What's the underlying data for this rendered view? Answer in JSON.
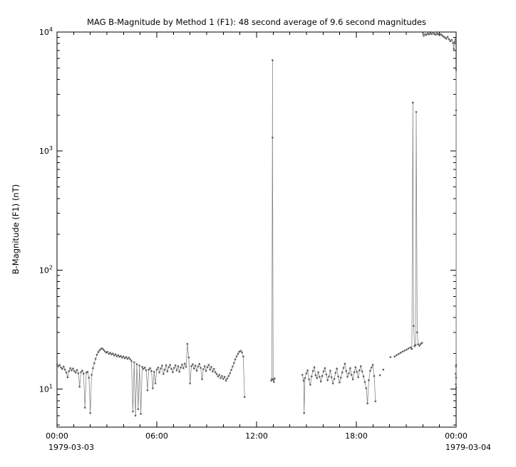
{
  "chart_data": {
    "type": "line",
    "title": "MAG  B-Magnitude by Method 1 (F1): 48 second average of 9.6 second magnitudes",
    "ylabel": "B-Magnitude (F1) (nT)",
    "x_date_left": "1979-03-03",
    "x_date_right": "1979-03-04",
    "xlim": [
      0,
      24
    ],
    "ylim": [
      4.8,
      10000
    ],
    "y_scale": "log",
    "x_ticks": [
      {
        "h": 0,
        "label": "00:00"
      },
      {
        "h": 6,
        "label": "06:00"
      },
      {
        "h": 12,
        "label": "12:00"
      },
      {
        "h": 18,
        "label": "18:00"
      },
      {
        "h": 24,
        "label": "00:00"
      }
    ],
    "x_minor_step_hours": 1,
    "y_ticks": [
      {
        "v": 10,
        "mantissa": "10",
        "exp": "1"
      },
      {
        "v": 100,
        "mantissa": "10",
        "exp": "2"
      },
      {
        "v": 1000,
        "mantissa": "10",
        "exp": "3"
      },
      {
        "v": 10000,
        "mantissa": "10",
        "exp": "4"
      }
    ],
    "colors": {
      "marker": "#5f5f5f",
      "line": "#808080",
      "axis": "#000000",
      "background": "#ffffff"
    },
    "series": [
      {
        "name": "B-Magnitude (F1) 48-second average",
        "units": "nT",
        "segments": [
          [
            [
              0.0,
              16.2
            ],
            [
              0.08,
              15.6
            ],
            [
              0.16,
              16.0
            ],
            [
              0.24,
              15.2
            ],
            [
              0.32,
              14.8
            ],
            [
              0.4,
              15.5
            ],
            [
              0.48,
              14.6
            ],
            [
              0.56,
              13.8
            ],
            [
              0.64,
              12.6
            ],
            [
              0.72,
              14.2
            ],
            [
              0.8,
              15.0
            ],
            [
              0.88,
              14.4
            ],
            [
              0.96,
              14.9
            ],
            [
              1.04,
              14.2
            ],
            [
              1.12,
              13.8
            ],
            [
              1.2,
              14.5
            ],
            [
              1.28,
              13.6
            ],
            [
              1.36,
              10.5
            ],
            [
              1.44,
              13.9
            ],
            [
              1.52,
              14.3
            ],
            [
              1.6,
              13.5
            ],
            [
              1.68,
              7.0
            ],
            [
              1.76,
              13.8
            ],
            [
              1.84,
              14.0
            ],
            [
              1.92,
              12.5
            ],
            [
              2.0,
              6.3
            ],
            [
              2.08,
              13.2
            ],
            [
              2.16,
              15.0
            ],
            [
              2.24,
              16.5
            ],
            [
              2.32,
              18.0
            ],
            [
              2.4,
              19.5
            ],
            [
              2.48,
              20.5
            ],
            [
              2.56,
              21.2
            ],
            [
              2.64,
              21.8
            ],
            [
              2.72,
              22.0
            ],
            [
              2.8,
              21.4
            ],
            [
              2.88,
              20.8
            ],
            [
              2.96,
              20.3
            ],
            [
              3.04,
              20.6
            ],
            [
              3.12,
              19.8
            ],
            [
              3.2,
              20.2
            ],
            [
              3.28,
              19.6
            ],
            [
              3.36,
              19.9
            ],
            [
              3.44,
              19.2
            ],
            [
              3.52,
              19.6
            ],
            [
              3.6,
              18.9
            ],
            [
              3.68,
              19.3
            ],
            [
              3.76,
              18.7
            ],
            [
              3.84,
              19.0
            ],
            [
              3.92,
              18.4
            ],
            [
              4.0,
              18.8
            ],
            [
              4.08,
              18.2
            ],
            [
              4.16,
              18.6
            ],
            [
              4.24,
              18.0
            ],
            [
              4.32,
              18.4
            ],
            [
              4.4,
              17.8
            ],
            [
              4.48,
              17.2
            ],
            [
              4.56,
              6.5
            ],
            [
              4.64,
              16.8
            ],
            [
              4.72,
              6.0
            ],
            [
              4.8,
              16.2
            ],
            [
              4.88,
              6.8
            ],
            [
              4.96,
              15.8
            ],
            [
              5.04,
              6.2
            ],
            [
              5.12,
              15.4
            ],
            [
              5.2,
              14.8
            ],
            [
              5.28,
              15.2
            ],
            [
              5.36,
              14.4
            ],
            [
              5.44,
              9.8
            ],
            [
              5.52,
              14.6
            ],
            [
              5.6,
              15.0
            ],
            [
              5.68,
              14.2
            ],
            [
              5.76,
              10.2
            ],
            [
              5.84,
              14.0
            ],
            [
              5.92,
              11.2
            ],
            [
              6.0,
              14.6
            ],
            [
              6.08,
              15.2
            ],
            [
              6.16,
              13.8
            ],
            [
              6.24,
              14.9
            ],
            [
              6.32,
              15.8
            ],
            [
              6.4,
              13.4
            ],
            [
              6.48,
              14.6
            ],
            [
              6.56,
              15.9
            ],
            [
              6.64,
              14.1
            ],
            [
              6.72,
              15.3
            ],
            [
              6.8,
              16.0
            ],
            [
              6.88,
              14.8
            ],
            [
              6.96,
              13.9
            ],
            [
              7.04,
              15.1
            ],
            [
              7.12,
              15.9
            ],
            [
              7.2,
              14.4
            ],
            [
              7.28,
              15.6
            ],
            [
              7.36,
              14.0
            ],
            [
              7.44,
              15.2
            ],
            [
              7.52,
              16.1
            ],
            [
              7.6,
              15.0
            ],
            [
              7.68,
              16.4
            ],
            [
              7.76,
              15.4
            ],
            [
              7.84,
              24.0
            ],
            [
              7.92,
              18.5
            ],
            [
              8.0,
              11.2
            ],
            [
              8.08,
              15.6
            ],
            [
              8.16,
              16.2
            ],
            [
              8.24,
              14.9
            ],
            [
              8.32,
              15.8
            ],
            [
              8.4,
              14.3
            ],
            [
              8.48,
              15.5
            ],
            [
              8.56,
              16.3
            ],
            [
              8.64,
              15.1
            ],
            [
              8.72,
              12.1
            ],
            [
              8.8,
              14.7
            ],
            [
              8.88,
              15.6
            ],
            [
              8.96,
              14.2
            ],
            [
              9.04,
              15.3
            ],
            [
              9.12,
              16.0
            ],
            [
              9.2,
              14.6
            ],
            [
              9.28,
              15.4
            ],
            [
              9.36,
              14.1
            ],
            [
              9.44,
              14.8
            ],
            [
              9.52,
              13.9
            ],
            [
              9.6,
              13.4
            ],
            [
              9.68,
              12.8
            ],
            [
              9.76,
              13.2
            ],
            [
              9.84,
              12.4
            ],
            [
              9.92,
              12.9
            ],
            [
              10.0,
              12.2
            ],
            [
              10.08,
              12.7
            ],
            [
              10.16,
              11.8
            ],
            [
              10.24,
              12.3
            ],
            [
              10.32,
              12.9
            ],
            [
              10.4,
              13.6
            ],
            [
              10.48,
              14.5
            ],
            [
              10.56,
              15.5
            ],
            [
              10.64,
              16.6
            ],
            [
              10.72,
              17.8
            ],
            [
              10.8,
              18.9
            ],
            [
              10.88,
              19.8
            ],
            [
              10.96,
              20.6
            ],
            [
              11.04,
              21.0
            ],
            [
              11.12,
              20.4
            ],
            [
              11.2,
              18.8
            ],
            [
              11.28,
              8.6
            ]
          ],
          [
            [
              12.88,
              11.8
            ],
            [
              12.92,
              12.2
            ],
            [
              12.96,
              5800
            ],
            [
              12.96,
              1300
            ],
            [
              13.0,
              12.0
            ],
            [
              13.04,
              11.5
            ],
            [
              13.08,
              12.3
            ]
          ],
          [
            [
              14.75,
              13.2
            ],
            [
              14.83,
              11.8
            ],
            [
              14.86,
              6.3
            ],
            [
              14.91,
              12.4
            ],
            [
              14.99,
              13.6
            ],
            [
              15.07,
              14.4
            ],
            [
              15.15,
              12.1
            ],
            [
              15.23,
              10.9
            ],
            [
              15.31,
              12.8
            ],
            [
              15.39,
              14.2
            ],
            [
              15.47,
              15.3
            ],
            [
              15.55,
              13.1
            ],
            [
              15.63,
              12.4
            ],
            [
              15.71,
              13.9
            ],
            [
              15.79,
              12.7
            ],
            [
              15.87,
              11.6
            ],
            [
              15.95,
              12.9
            ],
            [
              16.03,
              14.1
            ],
            [
              16.11,
              15.0
            ],
            [
              16.19,
              13.3
            ],
            [
              16.27,
              11.9
            ],
            [
              16.35,
              12.8
            ],
            [
              16.43,
              14.3
            ],
            [
              16.51,
              12.6
            ],
            [
              16.59,
              11.2
            ],
            [
              16.67,
              12.2
            ],
            [
              16.75,
              13.7
            ],
            [
              16.83,
              14.9
            ],
            [
              16.91,
              12.8
            ],
            [
              16.99,
              11.4
            ],
            [
              17.07,
              12.5
            ],
            [
              17.15,
              13.8
            ],
            [
              17.23,
              15.1
            ],
            [
              17.31,
              16.4
            ],
            [
              17.39,
              14.2
            ],
            [
              17.47,
              12.7
            ],
            [
              17.55,
              13.6
            ],
            [
              17.63,
              15.0
            ],
            [
              17.71,
              13.2
            ],
            [
              17.79,
              12.1
            ],
            [
              17.87,
              13.9
            ],
            [
              17.95,
              15.3
            ],
            [
              18.03,
              14.0
            ],
            [
              18.11,
              12.6
            ],
            [
              18.19,
              14.4
            ],
            [
              18.27,
              15.6
            ],
            [
              18.35,
              14.1
            ],
            [
              18.43,
              12.8
            ],
            [
              18.51,
              11.5
            ],
            [
              18.59,
              10.2
            ],
            [
              18.67,
              7.6
            ],
            [
              18.75,
              11.9
            ],
            [
              18.83,
              14.3
            ],
            [
              18.91,
              15.2
            ],
            [
              18.99,
              16.0
            ],
            [
              19.07,
              12.9
            ],
            [
              19.15,
              7.9
            ]
          ],
          [
            [
              19.42,
              13.1
            ]
          ],
          [
            [
              19.62,
              14.6
            ]
          ],
          [
            [
              20.05,
              18.6
            ]
          ],
          [
            [
              20.3,
              18.8
            ],
            [
              20.42,
              19.3
            ],
            [
              20.54,
              19.8
            ],
            [
              20.66,
              20.2
            ],
            [
              20.78,
              20.7
            ],
            [
              20.9,
              21.1
            ],
            [
              21.02,
              21.5
            ],
            [
              21.14,
              22.0
            ],
            [
              21.26,
              22.4
            ],
            [
              21.34,
              21.8
            ],
            [
              21.4,
              2550
            ],
            [
              21.44,
              34
            ],
            [
              21.5,
              23.0
            ],
            [
              21.56,
              23.5
            ],
            [
              21.6,
              2130
            ],
            [
              21.66,
              30
            ],
            [
              21.72,
              23.8
            ],
            [
              21.8,
              23.2
            ],
            [
              21.88,
              24.0
            ],
            [
              21.95,
              24.5
            ]
          ],
          [
            [
              22.05,
              9300
            ],
            [
              22.13,
              9600
            ],
            [
              22.21,
              9450
            ],
            [
              22.29,
              9700
            ],
            [
              22.37,
              9550
            ],
            [
              22.45,
              9800
            ],
            [
              22.53,
              9600
            ],
            [
              22.61,
              9900
            ],
            [
              22.69,
              9650
            ],
            [
              22.77,
              9500
            ],
            [
              22.85,
              9700
            ],
            [
              22.93,
              9550
            ],
            [
              23.01,
              9400
            ],
            [
              23.09,
              9600
            ],
            [
              23.17,
              9350
            ],
            [
              23.25,
              9150
            ],
            [
              23.33,
              9000
            ],
            [
              23.41,
              8800
            ],
            [
              23.49,
              9100
            ],
            [
              23.57,
              8700
            ],
            [
              23.65,
              8400
            ],
            [
              23.73,
              8600
            ],
            [
              23.81,
              8100
            ],
            [
              23.86,
              7200
            ],
            [
              23.91,
              8300
            ],
            [
              23.96,
              8700
            ]
          ],
          [
            [
              23.975,
              13.5
            ],
            [
              23.985,
              11.0
            ],
            [
              23.99,
              15.5
            ],
            [
              24.0,
              4800
            ],
            [
              24.0,
              2200
            ],
            [
              24.0,
              16.0
            ],
            [
              24.0,
              12.5
            ],
            [
              24.0,
              10.4
            ]
          ]
        ]
      }
    ]
  }
}
